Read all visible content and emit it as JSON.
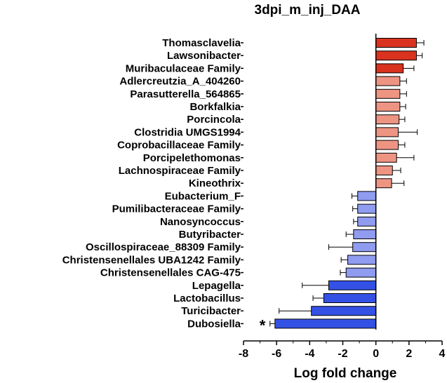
{
  "chart_data": {
    "type": "bar",
    "orientation": "horizontal",
    "title": "3dpi_m_inj_DAA",
    "xlabel": "Log fold change",
    "ylabel": "",
    "xlim": [
      -8,
      4
    ],
    "x_ticks": [
      "-8",
      "-6",
      "-4",
      "-2",
      "0",
      "2",
      "4"
    ],
    "grid": false,
    "categories": [
      "Thomasclavelia",
      "Lawsonibacter",
      "Muribaculaceae Family",
      "Adlercreutzia_A_404260",
      "Parasutterella_564865",
      "Borkfalkia",
      "Porcincola",
      "Clostridia UMGS1994",
      "Coprobacillaceae Family",
      "Porcipelethomonas",
      "Lachnospiraceae Family",
      "Kineothrix",
      "Eubacterium_F",
      "Pumilibacteraceae Family",
      "Nanosyncoccus",
      "Butyribacter",
      "Oscillospiraceae_88309 Family",
      "Christensenellales UBA1242 Family",
      "Christensenellales CAG-475",
      "Lepagella",
      "Lactobacillus",
      "Turicibacter",
      "Dubosiella"
    ],
    "values": [
      2.45,
      2.45,
      1.65,
      1.45,
      1.45,
      1.45,
      1.4,
      1.35,
      1.35,
      1.25,
      1.0,
      0.95,
      -1.1,
      -1.1,
      -1.1,
      -1.35,
      -1.4,
      -1.7,
      -1.8,
      -2.85,
      -3.15,
      -3.9,
      -6.1
    ],
    "errors": [
      0.45,
      0.35,
      0.65,
      0.4,
      0.4,
      0.35,
      0.35,
      1.15,
      0.4,
      1.05,
      0.5,
      0.75,
      0.35,
      0.3,
      0.25,
      0.45,
      1.45,
      0.4,
      0.35,
      1.6,
      0.65,
      1.95,
      0.3
    ],
    "colors": [
      "#d9331f",
      "#d9331f",
      "#d9331f",
      "#ee9483",
      "#ee9483",
      "#ee9483",
      "#ee9483",
      "#ee9483",
      "#ee9483",
      "#ee9483",
      "#ee9483",
      "#ee9483",
      "#8f9cf0",
      "#8f9cf0",
      "#8f9cf0",
      "#8f9cf0",
      "#8f9cf0",
      "#8f9cf0",
      "#8f9cf0",
      "#3451e6",
      "#3451e6",
      "#3451e6",
      "#3451e6"
    ],
    "annotations": [
      {
        "category": "Dubosiella",
        "text": "*"
      }
    ]
  }
}
